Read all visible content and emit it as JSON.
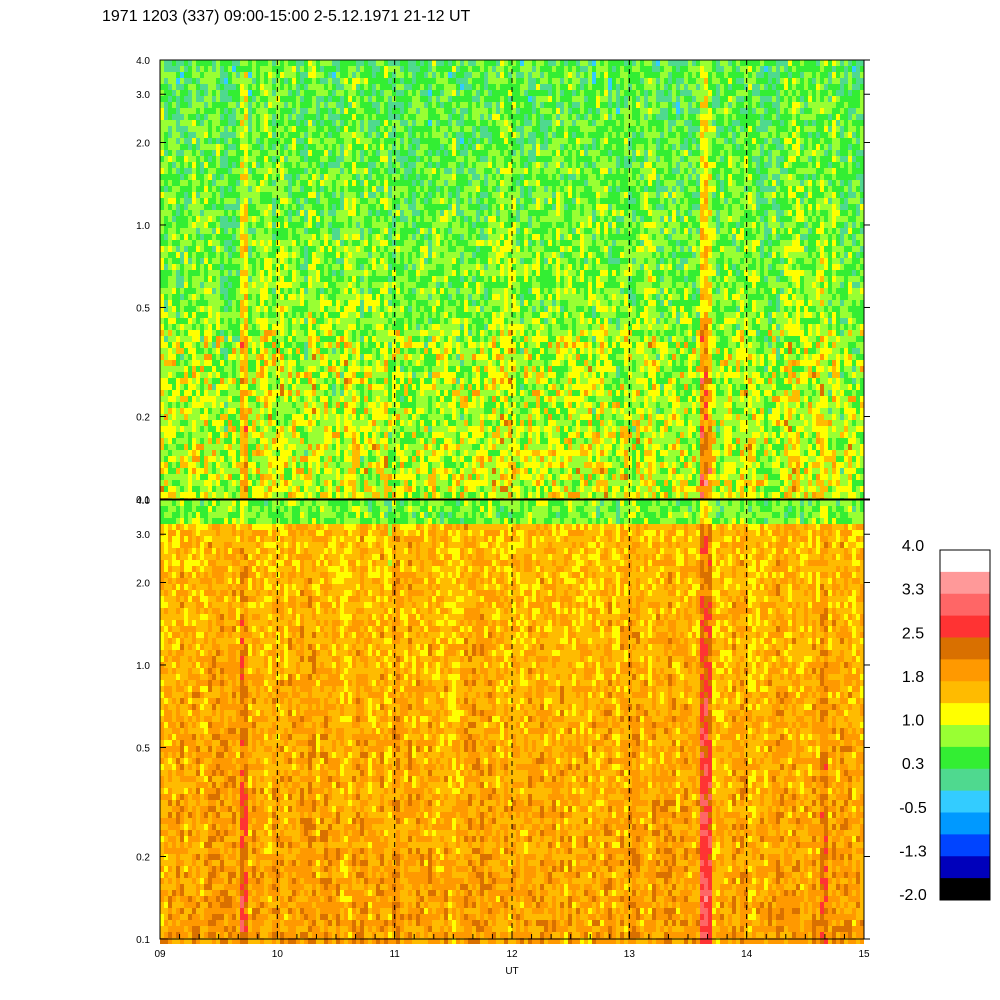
{
  "title": "1971 1203 (337) 09:00-15:00 2-5.12.1971  21-12 UT",
  "chart_data": [
    {
      "type": "heatmap",
      "panel": "upper",
      "x_range": [
        9,
        15
      ],
      "y_scale": "log",
      "ylim": [
        0.1,
        4.0
      ],
      "y_ticks": [
        "0.1",
        "0.2",
        "0.5",
        "1.0",
        "2.0",
        "3.0",
        "4.0"
      ],
      "y_tick_values": [
        0.1,
        0.2,
        0.5,
        1.0,
        2.0,
        3.0,
        4.0
      ],
      "vertical_dashed_lines": [
        10,
        11,
        12,
        13,
        14
      ],
      "dominant_levels": [
        "0.3",
        "-0.5",
        "1.0"
      ],
      "notes": "mostly green/teal with scattered yellow and orange streaks"
    },
    {
      "type": "heatmap",
      "panel": "lower",
      "x_range": [
        9,
        15
      ],
      "y_scale": "log",
      "ylim": [
        0.1,
        4.0
      ],
      "y_ticks": [
        "0.1",
        "0.2",
        "0.5",
        "1.0",
        "2.0",
        "3.0",
        "4.0"
      ],
      "y_tick_values": [
        0.1,
        0.2,
        0.5,
        1.0,
        2.0,
        3.0,
        4.0
      ],
      "x_ticks": [
        "09",
        "10",
        "11",
        "12",
        "13",
        "14",
        "15"
      ],
      "x_tick_values": [
        9,
        10,
        11,
        12,
        13,
        14,
        15
      ],
      "xlabel": "UT",
      "vertical_dashed_lines": [
        10,
        11,
        12,
        13,
        14
      ],
      "dominant_levels": [
        "1.8",
        "1.0",
        "2.5"
      ],
      "notes": "mostly orange/yellow with red streaks near 13.65 UT"
    }
  ],
  "colorbar": {
    "labels": [
      "4.0",
      "3.3",
      "2.5",
      "1.8",
      "1.0",
      "0.3",
      "-0.5",
      "-1.3",
      "-2.0"
    ],
    "colors": [
      "#ffffff",
      "#ff9999",
      "#ff6666",
      "#ff3333",
      "#d97000",
      "#ff9900",
      "#ffbb00",
      "#ffff00",
      "#99ff33",
      "#33ee33",
      "#4fd98f",
      "#33ccff",
      "#0099ff",
      "#0044ff",
      "#0000bb",
      "#000000"
    ]
  }
}
